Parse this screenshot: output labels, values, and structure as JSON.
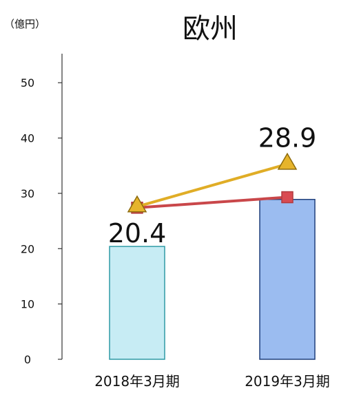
{
  "chart_data": {
    "type": "bar",
    "title": "欧州",
    "unit_label": "（億円）",
    "categories": [
      "2018年3月期",
      "2019年3月期"
    ],
    "ylim": [
      0,
      55
    ],
    "yticks": [
      0,
      10,
      20,
      30,
      40,
      50
    ],
    "grid": false,
    "bars": {
      "values": [
        20.4,
        28.9
      ],
      "labels": [
        "20.4",
        "28.9"
      ],
      "fill_colors": [
        "#c7ecf4",
        "#9bbcf0"
      ],
      "stroke_colors": [
        "#2e9aa5",
        "#1f3f7a"
      ]
    },
    "lines": [
      {
        "values": [
          27.4,
          29.3
        ],
        "marker": "square",
        "color": "#c9474a",
        "marker_fill": "#d94b52",
        "marker_stroke": "#b23a3f"
      },
      {
        "values": [
          27.6,
          35.3
        ],
        "marker": "triangle",
        "color": "#e0ad26",
        "marker_fill": "#e6b42c",
        "marker_stroke": "#8d6b0d"
      }
    ]
  }
}
